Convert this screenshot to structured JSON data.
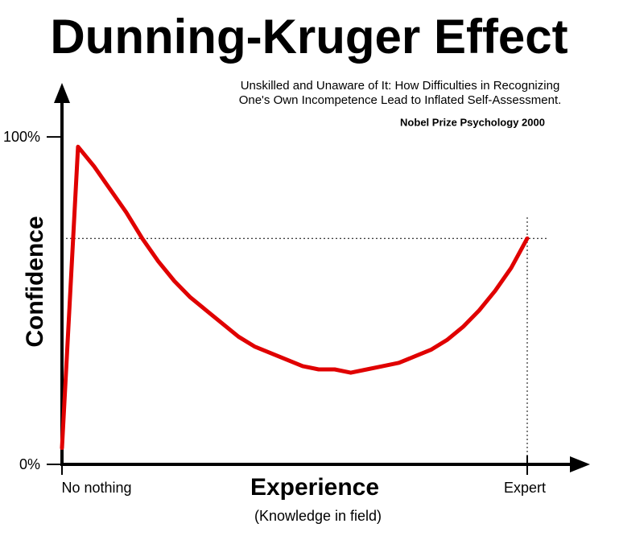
{
  "chart_data": {
    "type": "line",
    "title": "Dunning-Kruger Effect",
    "subtitle": [
      "Unskilled and Unaware of It: How Difficulties in Recognizing",
      "One's Own Incompetence Lead to Inflated Self-Assessment."
    ],
    "annotation": "Nobel Prize Psychology  2000",
    "x_label": "Experience",
    "x_sublabel": "(Knowledge in field)",
    "y_label": "Confidence",
    "categories": [
      "No nothing",
      null,
      null,
      null,
      null,
      null,
      null,
      null,
      null,
      null,
      null,
      null,
      null,
      null,
      null,
      null,
      null,
      null,
      null,
      null,
      null,
      null,
      null,
      null,
      null,
      null,
      null,
      null,
      null,
      "Expert"
    ],
    "series": [
      {
        "color": "#e00000",
        "values": [
          5,
          97,
          91,
          84,
          77,
          69,
          62,
          56,
          51,
          47,
          43,
          39,
          36,
          34,
          32,
          30,
          29,
          29,
          28,
          29,
          30,
          31,
          33,
          35,
          38,
          42,
          47,
          53,
          60,
          69
        ]
      }
    ],
    "ylim": [
      0,
      116
    ],
    "yticks": [
      {
        "value": 0,
        "label": "0%"
      },
      {
        "value": 100,
        "label": "100%"
      }
    ],
    "grid": false
  }
}
